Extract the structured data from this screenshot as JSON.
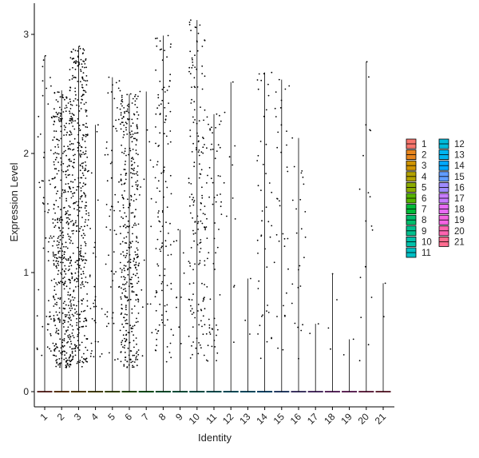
{
  "chart_data": {
    "type": "violin",
    "xlabel": "Identity",
    "ylabel": "Expression Level",
    "ylim": [
      -0.15,
      3.15
    ],
    "yticks": [
      0,
      1,
      2,
      3
    ],
    "categories": [
      "1",
      "2",
      "3",
      "4",
      "5",
      "6",
      "7",
      "8",
      "9",
      "10",
      "11",
      "12",
      "13",
      "14",
      "15",
      "16",
      "17",
      "18",
      "19",
      "20",
      "21"
    ],
    "series": [
      {
        "name": "1",
        "color": "#F8766D",
        "max": 2.82,
        "density": 0.55,
        "points": 60
      },
      {
        "name": "2",
        "color": "#E7851E",
        "max": 2.53,
        "density": 0.8,
        "points": 420
      },
      {
        "name": "3",
        "color": "#D09400",
        "max": 2.9,
        "density": 0.85,
        "points": 460
      },
      {
        "name": "4",
        "color": "#B2A100",
        "max": 2.24,
        "density": 0.3,
        "points": 35
      },
      {
        "name": "5",
        "color": "#8BAB00",
        "max": 2.64,
        "density": 0.45,
        "points": 60
      },
      {
        "name": "6",
        "color": "#55B400",
        "max": 2.5,
        "density": 0.9,
        "points": 380
      },
      {
        "name": "7",
        "color": "#00BA38",
        "max": 2.52,
        "density": 0.25,
        "points": 18
      },
      {
        "name": "8",
        "color": "#00BE6C",
        "max": 2.99,
        "density": 0.55,
        "points": 130
      },
      {
        "name": "9",
        "color": "#00C08E",
        "max": 1.36,
        "density": 0.2,
        "points": 12
      },
      {
        "name": "10",
        "color": "#00C1AB",
        "max": 3.12,
        "density": 0.6,
        "points": 170
      },
      {
        "name": "11",
        "color": "#00BFC4",
        "max": 2.33,
        "density": 0.4,
        "points": 70
      },
      {
        "name": "12",
        "color": "#00BBDB",
        "max": 2.6,
        "density": 0.25,
        "points": 12
      },
      {
        "name": "13",
        "color": "#00B4EF",
        "max": 0.95,
        "density": 0.15,
        "points": 3
      },
      {
        "name": "14",
        "color": "#00A8FF",
        "max": 2.68,
        "density": 0.4,
        "points": 45
      },
      {
        "name": "15",
        "color": "#619CFF",
        "max": 2.62,
        "density": 0.4,
        "points": 35
      },
      {
        "name": "16",
        "color": "#9F8CFF",
        "max": 2.13,
        "density": 0.35,
        "points": 25
      },
      {
        "name": "17",
        "color": "#C77CFF",
        "max": 0.57,
        "density": 0.15,
        "points": 2
      },
      {
        "name": "18",
        "color": "#E76BF3",
        "max": 0.99,
        "density": 0.15,
        "points": 4
      },
      {
        "name": "19",
        "color": "#F564E3",
        "max": 0.44,
        "density": 0.12,
        "points": 2
      },
      {
        "name": "20",
        "color": "#FF64B0",
        "max": 2.77,
        "density": 0.3,
        "points": 18
      },
      {
        "name": "21",
        "color": "#FF6C90",
        "max": 0.91,
        "density": 0.12,
        "points": 2
      }
    ],
    "legend": {
      "placement": "right",
      "columns": 2
    }
  }
}
